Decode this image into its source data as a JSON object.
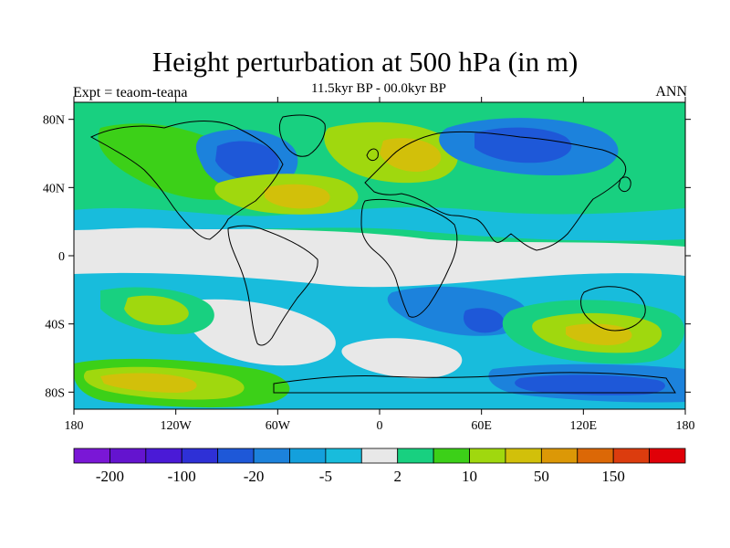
{
  "header": {
    "title": "Height perturbation at 500 hPa (in m)",
    "subtitle": "11.5kyr BP - 00.0kyr BP",
    "left_label": "Expt = teaom-teana",
    "right_label": "ANN"
  },
  "map": {
    "lon_range": [
      -180,
      180
    ],
    "lat_range": [
      -90,
      90
    ],
    "ocean_fill_color": "#e8e8e8",
    "coastline_color": "#000000",
    "lat_ticks": [
      {
        "value": 80,
        "label": "80N"
      },
      {
        "value": 40,
        "label": "40N"
      },
      {
        "value": 0,
        "label": "0"
      },
      {
        "value": -40,
        "label": "40S"
      },
      {
        "value": -80,
        "label": "80S"
      }
    ],
    "lon_ticks": [
      {
        "value": -180,
        "label": "180"
      },
      {
        "value": -120,
        "label": "120W"
      },
      {
        "value": -60,
        "label": "60W"
      },
      {
        "value": 0,
        "label": "0"
      },
      {
        "value": 60,
        "label": "60E"
      },
      {
        "value": 120,
        "label": "120E"
      },
      {
        "value": 180,
        "label": "180"
      }
    ]
  },
  "colorbar": {
    "colors": [
      "#7a17d6",
      "#6414cf",
      "#4a1ad6",
      "#2e30d6",
      "#1e58d8",
      "#1c82dc",
      "#14a0dc",
      "#18bcdc",
      "#e8e8e8",
      "#18d080",
      "#3cd018",
      "#a0d80e",
      "#d2c00a",
      "#dc9806",
      "#dc6806",
      "#dc3c0e",
      "#e00008"
    ],
    "labels": [
      {
        "index": 1,
        "text": "-200"
      },
      {
        "index": 3,
        "text": "-100"
      },
      {
        "index": 5,
        "text": "-20"
      },
      {
        "index": 7,
        "text": "-5"
      },
      {
        "index": 9,
        "text": "2"
      },
      {
        "index": 11,
        "text": "10"
      },
      {
        "index": 13,
        "text": "50"
      },
      {
        "index": 15,
        "text": "150"
      }
    ]
  },
  "field_features": [
    {
      "lon": -55,
      "lat": 48,
      "rx": 26,
      "ry": 14,
      "level": -3
    },
    {
      "lon": -78,
      "lat": 67,
      "rx": 20,
      "ry": 10,
      "level": -3
    },
    {
      "lon": 52,
      "lat": 64,
      "rx": 38,
      "ry": 17,
      "level": 3
    },
    {
      "lon": 80,
      "lat": 72,
      "rx": 50,
      "ry": 12,
      "level": 2
    },
    {
      "lon": 160,
      "lat": 72,
      "rx": 22,
      "ry": 8,
      "level": -1
    },
    {
      "lon": -165,
      "lat": 35,
      "rx": 28,
      "ry": 14,
      "level": -1
    },
    {
      "lon": -160,
      "lat": 64,
      "rx": 26,
      "ry": 14,
      "level": 2
    },
    {
      "lon": -60,
      "lat": 72,
      "rx": 10,
      "ry": 12,
      "level": -2
    },
    {
      "lon": 130,
      "lat": 17,
      "rx": 45,
      "ry": 10,
      "level": -1
    },
    {
      "lon": 80,
      "lat": 10,
      "rx": 45,
      "ry": 10,
      "level": -1
    },
    {
      "lon": -158,
      "lat": -30,
      "rx": 32,
      "ry": 10,
      "level": 2
    },
    {
      "lon": -158,
      "lat": -50,
      "rx": 44,
      "ry": 14,
      "level": -1
    },
    {
      "lon": -140,
      "lat": -72,
      "rx": 48,
      "ry": 14,
      "level": 3
    },
    {
      "lon": 130,
      "lat": -45,
      "rx": 36,
      "ry": 16,
      "level": 3
    },
    {
      "lon": 155,
      "lat": -20,
      "rx": 26,
      "ry": 10,
      "level": -1
    },
    {
      "lon": 75,
      "lat": -75,
      "rx": 55,
      "ry": 10,
      "level": -1
    },
    {
      "lon": 10,
      "lat": -58,
      "rx": 20,
      "ry": 9,
      "level": 1
    }
  ]
}
